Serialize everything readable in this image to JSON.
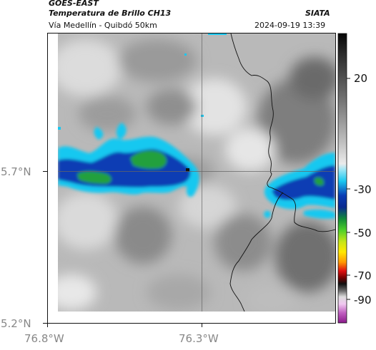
{
  "header": {
    "satellite": "GOES-EAST",
    "product": "Temperatura de Brillo CH13",
    "route": "Vía Medellín - Quibdó 50km",
    "organization": "SIATA",
    "timestamp": "2024-09-19 13:39"
  },
  "axes": {
    "y_ticks": [
      "5.7°N",
      "5.2°N"
    ],
    "x_ticks": [
      "76.8°W",
      "76.3°W"
    ]
  },
  "colorbar": {
    "ticks": [
      "20",
      "-30",
      "-50",
      "-70",
      "-90"
    ],
    "values": [
      20,
      -30,
      -50,
      -70,
      -90
    ],
    "range": [
      -95,
      35
    ]
  },
  "colors": {
    "cold_cyan": "#19c8f0",
    "cold_blue": "#0a3cb4",
    "cold_green": "#22a03c",
    "warm_gray": "#b0b0b0"
  }
}
